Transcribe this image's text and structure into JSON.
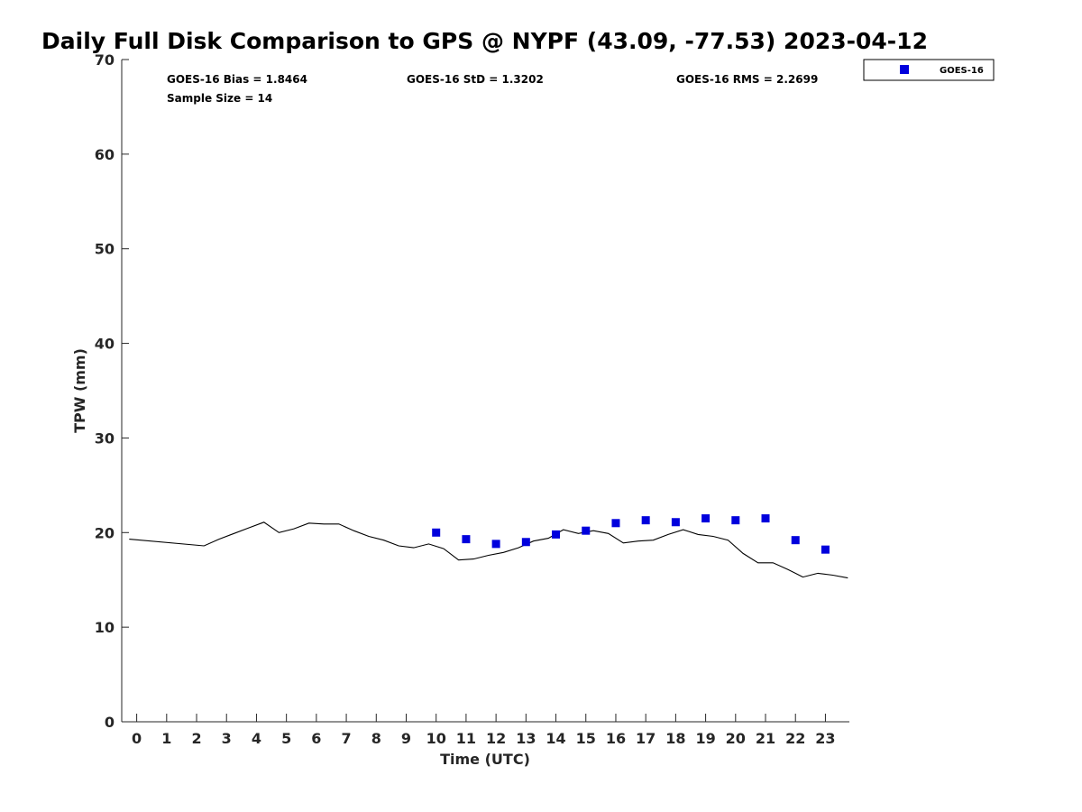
{
  "chart_data": {
    "type": "scatter",
    "title": "Daily Full Disk Comparison to GPS @ NYPF (43.09, -77.53) 2023-04-12",
    "xlabel": "Time (UTC)",
    "ylabel": "TPW (mm)",
    "xlim": [
      -0.5,
      23.8
    ],
    "ylim": [
      0,
      70
    ],
    "xticks": [
      "0",
      "1",
      "2",
      "3",
      "4",
      "5",
      "6",
      "7",
      "8",
      "9",
      "10",
      "11",
      "12",
      "13",
      "14",
      "15",
      "16",
      "17",
      "18",
      "19",
      "20",
      "21",
      "22",
      "23"
    ],
    "yticks": [
      "0",
      "10",
      "20",
      "30",
      "40",
      "50",
      "60",
      "70"
    ],
    "grid": false,
    "legend_position": "top-right",
    "stats": {
      "bias": "GOES-16 Bias = 1.8464",
      "std": "GOES-16 StD = 1.3202",
      "rms": "GOES-16 RMS = 2.2699",
      "sample": "Sample Size = 14"
    },
    "series": [
      {
        "kind": "line",
        "color": "#000000",
        "x": [
          -0.25,
          2.25,
          2.75,
          3.25,
          3.75,
          4.25,
          4.75,
          5.25,
          5.75,
          6.25,
          6.75,
          7.25,
          7.75,
          8.25,
          8.75,
          9.25,
          9.75,
          10.25,
          10.75,
          11.25,
          11.75,
          12.25,
          12.75,
          13.25,
          13.75,
          14.25,
          14.75,
          15.25,
          15.75,
          16.25,
          16.75,
          17.25,
          17.75,
          18.25,
          18.75,
          19.25,
          19.75,
          20.25,
          20.75,
          21.25,
          21.75,
          22.25,
          22.75,
          23.25,
          23.75
        ],
        "values": [
          19.3,
          18.6,
          19.3,
          19.9,
          20.5,
          21.1,
          20.0,
          20.4,
          21.0,
          20.9,
          20.9,
          20.2,
          19.6,
          19.2,
          18.6,
          18.4,
          18.8,
          18.3,
          17.1,
          17.2,
          17.6,
          17.9,
          18.4,
          19.1,
          19.4,
          20.3,
          19.9,
          20.2,
          19.9,
          18.9,
          19.1,
          19.2,
          19.8,
          20.3,
          19.8,
          19.6,
          19.2,
          17.8,
          16.8,
          16.8,
          16.1,
          15.3,
          15.7,
          15.5,
          15.2
        ]
      },
      {
        "kind": "scatter",
        "name": "GOES-16",
        "color": "#0000dd",
        "x": [
          10,
          11,
          12,
          13,
          14,
          15,
          16,
          17,
          18,
          19,
          20,
          21,
          22,
          23
        ],
        "values": [
          20.0,
          19.3,
          18.8,
          19.0,
          19.8,
          20.2,
          21.0,
          21.3,
          21.1,
          21.5,
          21.3,
          21.5,
          19.2,
          18.2
        ]
      }
    ]
  }
}
